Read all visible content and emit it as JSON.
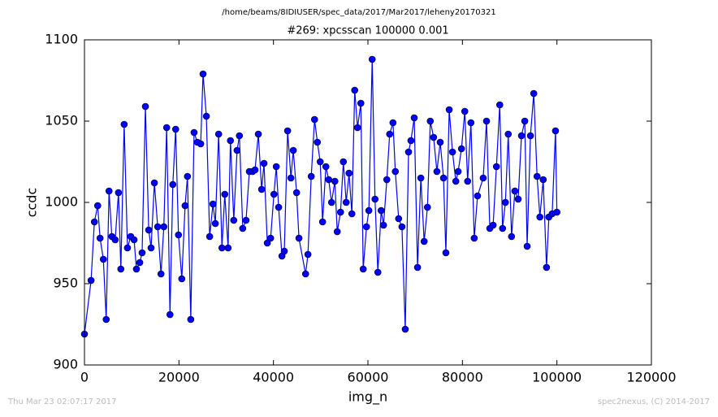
{
  "chart_data": {
    "type": "line",
    "suptitle": "/home/beams/8IDIUSER/spec_data/2017/Mar2017/leheny20170321",
    "title": "#269: xpcsscan 100000 0.001",
    "xlabel": "img_n",
    "ylabel": "ccdc",
    "footer_left": "Thu Mar 23 02:07:17 2017",
    "footer_right": "spec2nexus, (C) 2014-2017",
    "xlim": [
      0,
      120000
    ],
    "xticks": [
      0,
      20000,
      40000,
      60000,
      80000,
      100000,
      120000
    ],
    "ylim": [
      900,
      1100
    ],
    "yticks": [
      900,
      950,
      1000,
      1050,
      1100
    ],
    "grid": false,
    "x": [
      0,
      1400,
      2100,
      2800,
      3300,
      4000,
      4600,
      5200,
      5800,
      6500,
      7200,
      7700,
      8400,
      9100,
      9800,
      10500,
      11000,
      11700,
      12200,
      12900,
      13600,
      14100,
      14800,
      15500,
      16200,
      16800,
      17400,
      18100,
      18700,
      19300,
      19900,
      20600,
      21300,
      21800,
      22500,
      23200,
      23900,
      24600,
      25100,
      25800,
      26500,
      27200,
      27700,
      28400,
      29100,
      29700,
      30400,
      30900,
      31600,
      32300,
      32800,
      33500,
      34200,
      34900,
      35600,
      36100,
      36800,
      37500,
      38000,
      38700,
      39400,
      40100,
      40600,
      41100,
      41800,
      42300,
      43000,
      43700,
      44200,
      44900,
      45400,
      46800,
      47300,
      48000,
      48700,
      49300,
      49900,
      50400,
      51100,
      51700,
      52300,
      53000,
      53500,
      54200,
      54800,
      55400,
      56000,
      56600,
      57200,
      57800,
      58500,
      59000,
      59700,
      60200,
      60900,
      61500,
      62100,
      62800,
      63300,
      64000,
      64600,
      65300,
      65800,
      66500,
      67200,
      67900,
      68600,
      69100,
      69800,
      70500,
      71200,
      71900,
      72600,
      73200,
      73900,
      74600,
      75300,
      76000,
      76500,
      77200,
      77900,
      78600,
      79100,
      79800,
      80500,
      81100,
      81800,
      82500,
      83200,
      84400,
      85100,
      85800,
      86500,
      87200,
      87900,
      88500,
      89100,
      89700,
      90400,
      91100,
      91800,
      92500,
      93200,
      93700,
      94400,
      95100,
      95800,
      96400,
      97100,
      97800,
      98300,
      99000,
      99700,
      100000
    ],
    "series": [
      {
        "name": "ccdc",
        "color": "#0000ff",
        "values": [
          919,
          952,
          988,
          998,
          978,
          965,
          928,
          1007,
          979,
          977,
          1006,
          959,
          1048,
          972,
          979,
          977,
          959,
          963,
          969,
          1059,
          983,
          972,
          1012,
          985,
          956,
          985,
          1046,
          931,
          1011,
          1045,
          980,
          953,
          998,
          1016,
          928,
          1043,
          1037,
          1036,
          1079,
          1053,
          979,
          999,
          987,
          1042,
          972,
          1005,
          972,
          1038,
          989,
          1032,
          1041,
          984,
          989,
          1019,
          1019,
          1020,
          1042,
          1008,
          1024,
          975,
          978,
          1005,
          1022,
          997,
          967,
          970,
          1044,
          1015,
          1032,
          1006,
          978,
          956,
          968,
          1016,
          1051,
          1037,
          1025,
          988,
          1022,
          1014,
          1000,
          1013,
          982,
          994,
          1025,
          1000,
          1018,
          993,
          1069,
          1046,
          1061,
          959,
          985,
          995,
          1088,
          1002,
          957,
          995,
          986,
          1014,
          1042,
          1049,
          1019,
          990,
          985,
          922,
          1031,
          1038,
          1052,
          960,
          1015,
          976,
          997,
          1050,
          1040,
          1019,
          1037,
          1015,
          969,
          1057,
          1031,
          1013,
          1019,
          1033,
          1056,
          1013,
          1049,
          978,
          1004,
          1015,
          1050,
          984,
          986,
          1022,
          1060,
          984,
          1000,
          1042,
          979,
          1007,
          1002,
          1041,
          1050,
          973,
          1041,
          1067,
          1016,
          991,
          1014,
          960,
          991,
          993,
          1044,
          994
        ]
      }
    ]
  }
}
